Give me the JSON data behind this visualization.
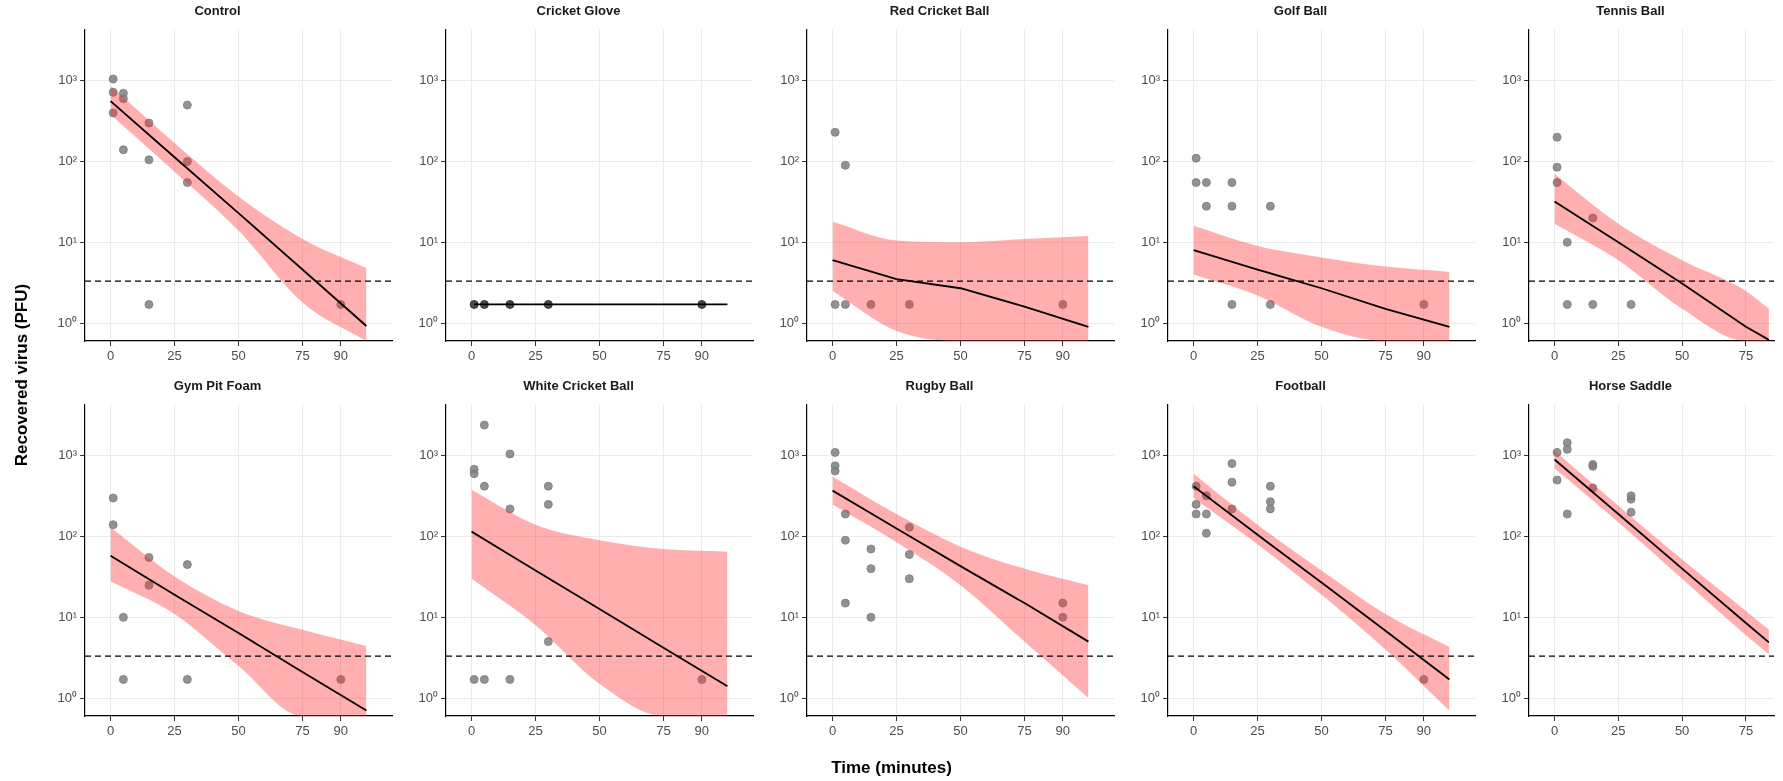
{
  "chart_data": [
    {
      "type": "scatter",
      "title": "Control",
      "ylabel": "Recovered virus (PFU)",
      "xlim": [
        -10,
        110
      ],
      "xticks": [
        0,
        25,
        50,
        75,
        90
      ],
      "ylim": [
        0.6,
        4300
      ],
      "yticks": [
        {
          "value": 1,
          "label": "10⁰"
        },
        {
          "value": 10,
          "label": "10¹"
        },
        {
          "value": 100,
          "label": "10²"
        },
        {
          "value": 1000,
          "label": "10³"
        }
      ],
      "log": "y",
      "grid": true,
      "ref_lines": [
        {
          "axis": "y",
          "value": 3.3,
          "line_style": "dashed"
        }
      ],
      "series": [
        {
          "type": "scatter",
          "color": "#7f7f7f",
          "x": [
            1,
            1,
            1,
            5,
            5,
            5,
            15,
            15,
            15,
            30,
            30,
            30,
            90
          ],
          "values": [
            1050,
            720,
            400,
            700,
            600,
            140,
            300,
            105,
            1.7,
            500,
            100,
            55,
            1.7
          ]
        },
        {
          "type": "line",
          "color": "#000000",
          "x": [
            0,
            25,
            50,
            75,
            100
          ],
          "values": [
            560,
            113,
            23,
            4.6,
            0.92
          ],
          "lower": [
            380,
            75,
            14,
            1.8,
            0.6
          ],
          "upper": [
            870,
            170,
            37,
            11,
            4.8
          ]
        }
      ]
    },
    {
      "type": "scatter",
      "title": "Cricket Glove",
      "xlim": [
        -10,
        110
      ],
      "xticks": [
        0,
        25,
        50,
        75,
        90
      ],
      "ylim": [
        0.6,
        4300
      ],
      "yticks": [
        {
          "value": 1,
          "label": "10⁰"
        },
        {
          "value": 10,
          "label": "10¹"
        },
        {
          "value": 100,
          "label": "10²"
        },
        {
          "value": 1000,
          "label": "10³"
        }
      ],
      "log": "y",
      "grid": true,
      "ref_lines": [
        {
          "axis": "y",
          "value": 3.3,
          "line_style": "dashed"
        }
      ],
      "series": [
        {
          "type": "scatter",
          "color": "#2b2b2b",
          "x": [
            1,
            5,
            15,
            30,
            90
          ],
          "values": [
            1.7,
            1.7,
            1.7,
            1.7,
            1.7
          ]
        },
        {
          "type": "line",
          "color": "#000000",
          "x": [
            1,
            100
          ],
          "values": [
            1.7,
            1.7
          ]
        }
      ]
    },
    {
      "type": "scatter",
      "title": "Red Cricket Ball",
      "xlim": [
        -10,
        110
      ],
      "xticks": [
        0,
        25,
        50,
        75,
        90
      ],
      "ylim": [
        0.6,
        4300
      ],
      "yticks": [
        {
          "value": 1,
          "label": "10⁰"
        },
        {
          "value": 10,
          "label": "10¹"
        },
        {
          "value": 100,
          "label": "10²"
        },
        {
          "value": 1000,
          "label": "10³"
        }
      ],
      "log": "y",
      "grid": true,
      "ref_lines": [
        {
          "axis": "y",
          "value": 3.3,
          "line_style": "dashed"
        }
      ],
      "series": [
        {
          "type": "scatter",
          "color": "#7f7f7f",
          "x": [
            1,
            5,
            1,
            5,
            15,
            30,
            90
          ],
          "values": [
            230,
            90,
            1.7,
            1.7,
            1.7,
            1.7,
            1.7
          ]
        },
        {
          "type": "line",
          "color": "#000000",
          "x": [
            0,
            25,
            50,
            75,
            100
          ],
          "values": [
            6,
            3.5,
            2.7,
            1.6,
            0.9
          ],
          "lower": [
            2.5,
            0.8,
            0.6,
            0.6,
            0.6
          ],
          "upper": [
            18,
            10.5,
            10,
            11,
            12
          ]
        }
      ]
    },
    {
      "type": "scatter",
      "title": "Golf Ball",
      "xlim": [
        -10,
        110
      ],
      "xticks": [
        0,
        25,
        50,
        75,
        90
      ],
      "ylim": [
        0.6,
        4300
      ],
      "yticks": [
        {
          "value": 1,
          "label": "10⁰"
        },
        {
          "value": 10,
          "label": "10¹"
        },
        {
          "value": 100,
          "label": "10²"
        },
        {
          "value": 1000,
          "label": "10³"
        }
      ],
      "log": "y",
      "grid": true,
      "ref_lines": [
        {
          "axis": "y",
          "value": 3.3,
          "line_style": "dashed"
        }
      ],
      "series": [
        {
          "type": "scatter",
          "color": "#7f7f7f",
          "x": [
            1,
            1,
            5,
            5,
            15,
            15,
            30,
            15,
            30,
            90
          ],
          "values": [
            110,
            55,
            55,
            28,
            55,
            28,
            28,
            1.7,
            1.7,
            1.7
          ]
        },
        {
          "type": "line",
          "color": "#000000",
          "x": [
            0,
            25,
            50,
            75,
            100
          ],
          "values": [
            8,
            4.6,
            2.7,
            1.5,
            0.9
          ],
          "lower": [
            4,
            2.2,
            0.9,
            0.6,
            0.6
          ],
          "upper": [
            16,
            9,
            6.5,
            5,
            4.3
          ]
        }
      ]
    },
    {
      "type": "scatter",
      "title": "Tennis Ball",
      "xlim": [
        -10,
        86
      ],
      "xticks": [
        0,
        25,
        50,
        75
      ],
      "ylim": [
        0.6,
        4300
      ],
      "yticks": [
        {
          "value": 1,
          "label": "10⁰"
        },
        {
          "value": 10,
          "label": "10¹"
        },
        {
          "value": 100,
          "label": "10²"
        },
        {
          "value": 1000,
          "label": "10³"
        }
      ],
      "log": "y",
      "grid": true,
      "ref_lines": [
        {
          "axis": "y",
          "value": 3.3,
          "line_style": "dashed"
        }
      ],
      "series": [
        {
          "type": "scatter",
          "color": "#7f7f7f",
          "x": [
            1,
            1,
            1,
            5,
            15,
            5,
            15,
            30
          ],
          "values": [
            200,
            85,
            55,
            10,
            20,
            1.7,
            1.7,
            1.7
          ]
        },
        {
          "type": "line",
          "color": "#000000",
          "x": [
            0,
            25,
            50,
            75,
            84
          ],
          "values": [
            32,
            10,
            3.1,
            0.9,
            0.62
          ],
          "lower": [
            17,
            6,
            1.5,
            0.6,
            0.6
          ],
          "upper": [
            70,
            17,
            6,
            2.5,
            1.5
          ]
        }
      ]
    },
    {
      "type": "scatter",
      "title": "Gym Pit Foam",
      "xlim": [
        -10,
        110
      ],
      "xticks": [
        0,
        25,
        50,
        75,
        90
      ],
      "ylim": [
        0.6,
        4300
      ],
      "yticks": [
        {
          "value": 1,
          "label": "10⁰"
        },
        {
          "value": 10,
          "label": "10¹"
        },
        {
          "value": 100,
          "label": "10²"
        },
        {
          "value": 1000,
          "label": "10³"
        }
      ],
      "log": "y",
      "grid": true,
      "ref_lines": [
        {
          "axis": "y",
          "value": 3.3,
          "line_style": "dashed"
        }
      ],
      "series": [
        {
          "type": "scatter",
          "color": "#7f7f7f",
          "x": [
            1,
            1,
            5,
            5,
            15,
            15,
            30,
            30,
            90
          ],
          "values": [
            300,
            140,
            10,
            1.7,
            55,
            25,
            45,
            1.7,
            1.7
          ]
        },
        {
          "type": "line",
          "color": "#000000",
          "x": [
            0,
            25,
            50,
            75,
            100
          ],
          "values": [
            58,
            19,
            6.4,
            2.1,
            0.7
          ],
          "lower": [
            28,
            11,
            2.5,
            0.6,
            0.6
          ],
          "upper": [
            130,
            32,
            12,
            7,
            4.4
          ]
        }
      ]
    },
    {
      "type": "scatter",
      "title": "White Cricket Ball",
      "xlim": [
        -10,
        110
      ],
      "xticks": [
        0,
        25,
        50,
        75,
        90
      ],
      "ylim": [
        0.6,
        4300
      ],
      "yticks": [
        {
          "value": 1,
          "label": "10⁰"
        },
        {
          "value": 10,
          "label": "10¹"
        },
        {
          "value": 100,
          "label": "10²"
        },
        {
          "value": 1000,
          "label": "10³"
        }
      ],
      "log": "y",
      "grid": true,
      "ref_lines": [
        {
          "axis": "y",
          "value": 3.3,
          "line_style": "dashed"
        }
      ],
      "series": [
        {
          "type": "scatter",
          "color": "#7f7f7f",
          "x": [
            1,
            1,
            5,
            5,
            15,
            15,
            30,
            30,
            30,
            1,
            5,
            15,
            90
          ],
          "values": [
            680,
            600,
            2400,
            420,
            1050,
            220,
            420,
            250,
            5,
            1.7,
            1.7,
            1.7,
            1.7
          ]
        },
        {
          "type": "line",
          "color": "#000000",
          "x": [
            0,
            25,
            50,
            75,
            100
          ],
          "values": [
            115,
            38,
            12.7,
            4.2,
            1.4
          ],
          "lower": [
            30,
            8,
            1.5,
            0.6,
            0.6
          ],
          "upper": [
            380,
            140,
            90,
            70,
            65
          ]
        }
      ]
    },
    {
      "type": "scatter",
      "title": "Rugby Ball",
      "xlabel": "Time (minutes)",
      "xlim": [
        -10,
        110
      ],
      "xticks": [
        0,
        25,
        50,
        75,
        90
      ],
      "ylim": [
        0.6,
        4300
      ],
      "yticks": [
        {
          "value": 1,
          "label": "10⁰"
        },
        {
          "value": 10,
          "label": "10¹"
        },
        {
          "value": 100,
          "label": "10²"
        },
        {
          "value": 1000,
          "label": "10³"
        }
      ],
      "log": "y",
      "grid": true,
      "ref_lines": [
        {
          "axis": "y",
          "value": 3.3,
          "line_style": "dashed"
        }
      ],
      "series": [
        {
          "type": "scatter",
          "color": "#7f7f7f",
          "x": [
            1,
            1,
            1,
            5,
            5,
            5,
            15,
            15,
            15,
            30,
            30,
            30,
            90,
            90
          ],
          "values": [
            1100,
            750,
            650,
            190,
            90,
            15,
            70,
            40,
            10,
            130,
            60,
            30,
            15,
            10
          ]
        },
        {
          "type": "line",
          "color": "#000000",
          "x": [
            0,
            25,
            50,
            75,
            100
          ],
          "values": [
            370,
            126,
            43,
            15,
            5
          ],
          "lower": [
            250,
            85,
            25,
            5,
            1
          ],
          "upper": [
            550,
            190,
            75,
            40,
            25
          ]
        }
      ]
    },
    {
      "type": "scatter",
      "title": "Football",
      "xlim": [
        -10,
        110
      ],
      "xticks": [
        0,
        25,
        50,
        75,
        90
      ],
      "ylim": [
        0.6,
        4300
      ],
      "yticks": [
        {
          "value": 1,
          "label": "10⁰"
        },
        {
          "value": 10,
          "label": "10¹"
        },
        {
          "value": 100,
          "label": "10²"
        },
        {
          "value": 1000,
          "label": "10³"
        }
      ],
      "log": "y",
      "grid": true,
      "ref_lines": [
        {
          "axis": "y",
          "value": 3.3,
          "line_style": "dashed"
        }
      ],
      "series": [
        {
          "type": "scatter",
          "color": "#7f7f7f",
          "x": [
            1,
            1,
            1,
            5,
            5,
            5,
            15,
            15,
            15,
            30,
            30,
            30,
            90
          ],
          "values": [
            420,
            250,
            190,
            320,
            190,
            110,
            800,
            470,
            220,
            420,
            270,
            220,
            1.7
          ]
        },
        {
          "type": "line",
          "color": "#000000",
          "x": [
            0,
            25,
            50,
            75,
            100
          ],
          "values": [
            420,
            105,
            27,
            6.8,
            1.7
          ],
          "lower": [
            300,
            80,
            19,
            4,
            0.7
          ],
          "upper": [
            600,
            140,
            38,
            11,
            4.3
          ]
        }
      ]
    },
    {
      "type": "scatter",
      "title": "Horse Saddle",
      "xlim": [
        -10,
        86
      ],
      "xticks": [
        0,
        25,
        50,
        75
      ],
      "ylim": [
        0.6,
        4300
      ],
      "yticks": [
        {
          "value": 1,
          "label": "10⁰"
        },
        {
          "value": 10,
          "label": "10¹"
        },
        {
          "value": 100,
          "label": "10²"
        },
        {
          "value": 1000,
          "label": "10³"
        }
      ],
      "log": "y",
      "grid": true,
      "ref_lines": [
        {
          "axis": "y",
          "value": 3.3,
          "line_style": "dashed"
        }
      ],
      "series": [
        {
          "type": "scatter",
          "color": "#7f7f7f",
          "x": [
            1,
            1,
            5,
            5,
            5,
            15,
            15,
            15,
            30,
            30,
            30
          ],
          "values": [
            1100,
            500,
            1450,
            1200,
            190,
            780,
            740,
            400,
            320,
            290,
            200
          ]
        },
        {
          "type": "line",
          "color": "#000000",
          "x": [
            0,
            25,
            50,
            75,
            84
          ],
          "values": [
            900,
            190,
            40,
            8.5,
            4.9
          ],
          "lower": [
            700,
            150,
            30,
            6,
            3.5
          ],
          "upper": [
            1150,
            240,
            52,
            12,
            7
          ]
        }
      ]
    }
  ]
}
